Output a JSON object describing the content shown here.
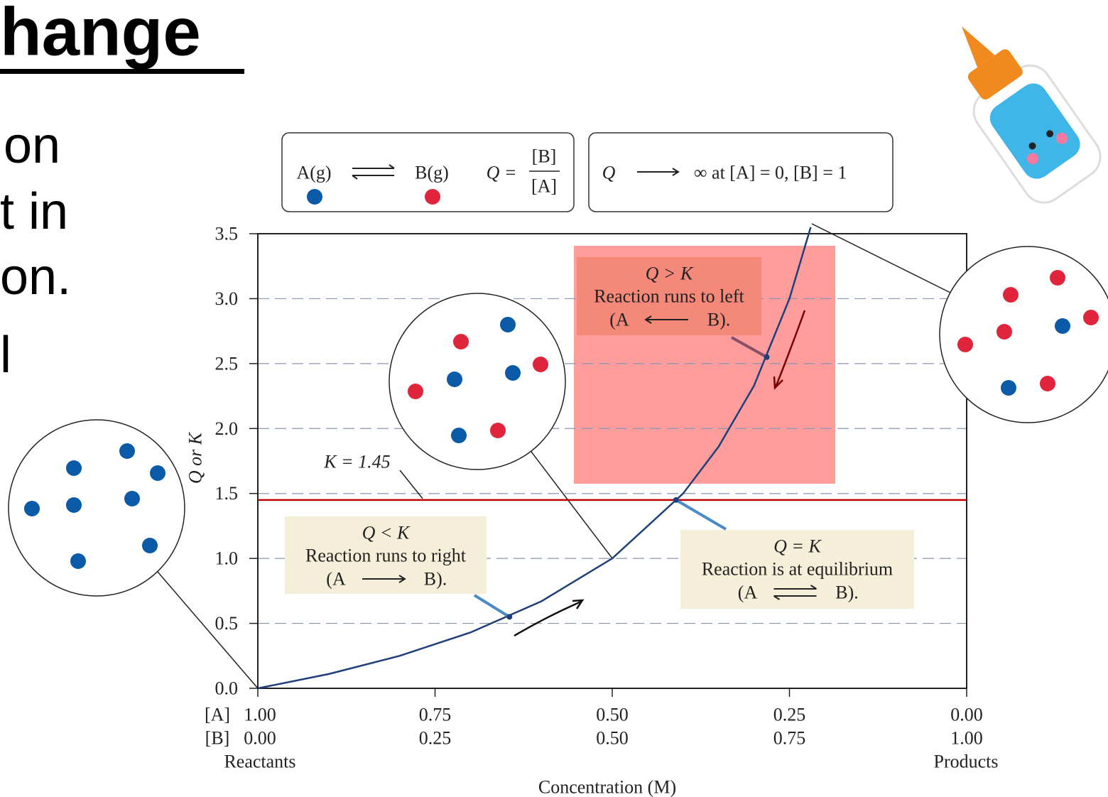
{
  "slide": {
    "title": "hange",
    "lines": [
      "on",
      "t in",
      "on.",
      "l"
    ]
  },
  "header": {
    "a": "A(g)",
    "b": "B(g)",
    "q_eq": "Q =",
    "num": "[B]",
    "den": "[A]",
    "q": "Q",
    "limit": "∞ at [A] = 0, [B] = 1"
  },
  "chart_data": {
    "type": "line",
    "x_label": "Concentration (M)",
    "y_label": "Q or K",
    "x_row_labels": [
      "[A]",
      "[B]"
    ],
    "x_end_labels": [
      "Reactants",
      "Products"
    ],
    "x": [
      0,
      0.1,
      0.2,
      0.3,
      0.4,
      0.5,
      0.6,
      0.65,
      0.7,
      0.75,
      0.78
    ],
    "values": [
      0,
      0.11,
      0.25,
      0.43,
      0.67,
      1.0,
      1.5,
      1.86,
      2.33,
      3.0,
      3.55
    ],
    "color": "#1f3f7a",
    "xlim": [
      0,
      1
    ],
    "ylim": [
      0,
      3.5
    ],
    "xticks": [
      {
        "value": 0,
        "label": "0.00"
      },
      {
        "value": 0.25,
        "label": "0.25"
      },
      {
        "value": 0.5,
        "label": "0.50"
      },
      {
        "value": 0.75,
        "label": "0.75"
      },
      {
        "value": 1,
        "label": "1.00"
      }
    ],
    "a_labels": [
      "1.00",
      "0.75",
      "0.50",
      "0.25",
      "0.00"
    ],
    "yticks": [
      {
        "value": 0,
        "label": "0.0"
      },
      0.5,
      {
        "value": 1,
        "label": "1.0"
      },
      1.5,
      {
        "value": 2,
        "label": "2.0"
      },
      2.5,
      {
        "value": 3,
        "label": "3.0"
      },
      3.5
    ],
    "grid": true,
    "k_line": {
      "value": 1.45,
      "label": "K = 1.45",
      "color": "#c00000"
    },
    "points": [
      {
        "x": 0.355,
        "y": 0.55
      },
      {
        "x": 0.59,
        "y": 1.45
      },
      {
        "x": 0.718,
        "y": 2.55
      }
    ],
    "annotations": [
      {
        "lines": [
          "Q < K",
          "Reaction runs to right",
          "(A",
          "B)."
        ]
      },
      {
        "lines": [
          "Q = K",
          "Reaction is at equilibrium",
          "(A",
          "B)."
        ]
      },
      {
        "lines": [
          "Q > K",
          "Reaction runs to left",
          "(A",
          "B)."
        ]
      }
    ]
  }
}
